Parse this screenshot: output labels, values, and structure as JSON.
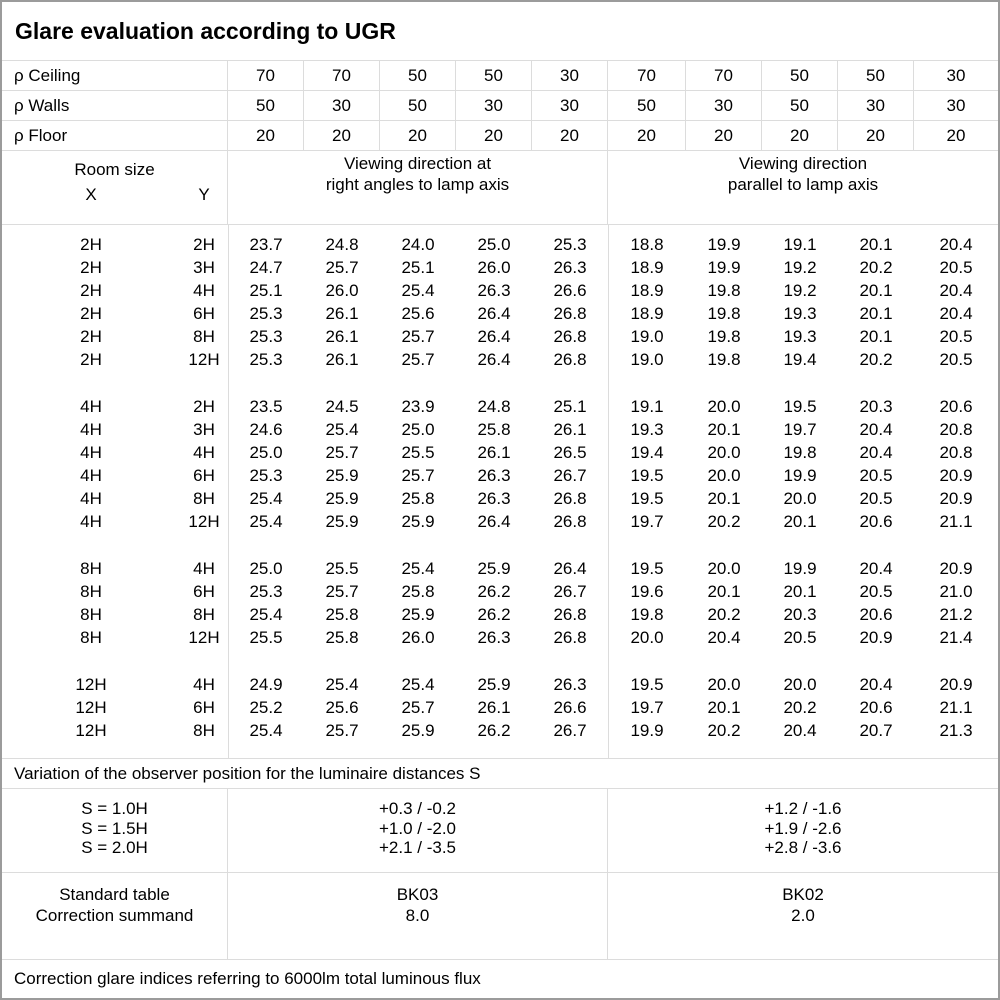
{
  "title": "Glare evaluation according to UGR",
  "reflectance": {
    "rows": [
      {
        "label": "ρ Ceiling",
        "values": [
          "70",
          "70",
          "50",
          "50",
          "30",
          "70",
          "70",
          "50",
          "50",
          "30"
        ]
      },
      {
        "label": "ρ Walls",
        "values": [
          "50",
          "30",
          "50",
          "30",
          "30",
          "50",
          "30",
          "50",
          "30",
          "30"
        ]
      },
      {
        "label": "ρ Floor",
        "values": [
          "20",
          "20",
          "20",
          "20",
          "20",
          "20",
          "20",
          "20",
          "20",
          "20"
        ]
      }
    ]
  },
  "header": {
    "room_size": "Room size",
    "x": "X",
    "y": "Y",
    "perpendicular_line1": "Viewing direction at",
    "perpendicular_line2": "right angles to lamp axis",
    "parallel_line1": "Viewing direction",
    "parallel_line2": "parallel to lamp axis"
  },
  "blocks": [
    {
      "rows": [
        {
          "x": "2H",
          "y": "2H",
          "v": [
            "23.7",
            "24.8",
            "24.0",
            "25.0",
            "25.3",
            "18.8",
            "19.9",
            "19.1",
            "20.1",
            "20.4"
          ]
        },
        {
          "x": "2H",
          "y": "3H",
          "v": [
            "24.7",
            "25.7",
            "25.1",
            "26.0",
            "26.3",
            "18.9",
            "19.9",
            "19.2",
            "20.2",
            "20.5"
          ]
        },
        {
          "x": "2H",
          "y": "4H",
          "v": [
            "25.1",
            "26.0",
            "25.4",
            "26.3",
            "26.6",
            "18.9",
            "19.8",
            "19.2",
            "20.1",
            "20.4"
          ]
        },
        {
          "x": "2H",
          "y": "6H",
          "v": [
            "25.3",
            "26.1",
            "25.6",
            "26.4",
            "26.8",
            "18.9",
            "19.8",
            "19.3",
            "20.1",
            "20.4"
          ]
        },
        {
          "x": "2H",
          "y": "8H",
          "v": [
            "25.3",
            "26.1",
            "25.7",
            "26.4",
            "26.8",
            "19.0",
            "19.8",
            "19.3",
            "20.1",
            "20.5"
          ]
        },
        {
          "x": "2H",
          "y": "12H",
          "v": [
            "25.3",
            "26.1",
            "25.7",
            "26.4",
            "26.8",
            "19.0",
            "19.8",
            "19.4",
            "20.2",
            "20.5"
          ]
        }
      ]
    },
    {
      "rows": [
        {
          "x": "4H",
          "y": "2H",
          "v": [
            "23.5",
            "24.5",
            "23.9",
            "24.8",
            "25.1",
            "19.1",
            "20.0",
            "19.5",
            "20.3",
            "20.6"
          ]
        },
        {
          "x": "4H",
          "y": "3H",
          "v": [
            "24.6",
            "25.4",
            "25.0",
            "25.8",
            "26.1",
            "19.3",
            "20.1",
            "19.7",
            "20.4",
            "20.8"
          ]
        },
        {
          "x": "4H",
          "y": "4H",
          "v": [
            "25.0",
            "25.7",
            "25.5",
            "26.1",
            "26.5",
            "19.4",
            "20.0",
            "19.8",
            "20.4",
            "20.8"
          ]
        },
        {
          "x": "4H",
          "y": "6H",
          "v": [
            "25.3",
            "25.9",
            "25.7",
            "26.3",
            "26.7",
            "19.5",
            "20.0",
            "19.9",
            "20.5",
            "20.9"
          ]
        },
        {
          "x": "4H",
          "y": "8H",
          "v": [
            "25.4",
            "25.9",
            "25.8",
            "26.3",
            "26.8",
            "19.5",
            "20.1",
            "20.0",
            "20.5",
            "20.9"
          ]
        },
        {
          "x": "4H",
          "y": "12H",
          "v": [
            "25.4",
            "25.9",
            "25.9",
            "26.4",
            "26.8",
            "19.7",
            "20.2",
            "20.1",
            "20.6",
            "21.1"
          ]
        }
      ]
    },
    {
      "rows": [
        {
          "x": "8H",
          "y": "4H",
          "v": [
            "25.0",
            "25.5",
            "25.4",
            "25.9",
            "26.4",
            "19.5",
            "20.0",
            "19.9",
            "20.4",
            "20.9"
          ]
        },
        {
          "x": "8H",
          "y": "6H",
          "v": [
            "25.3",
            "25.7",
            "25.8",
            "26.2",
            "26.7",
            "19.6",
            "20.1",
            "20.1",
            "20.5",
            "21.0"
          ]
        },
        {
          "x": "8H",
          "y": "8H",
          "v": [
            "25.4",
            "25.8",
            "25.9",
            "26.2",
            "26.8",
            "19.8",
            "20.2",
            "20.3",
            "20.6",
            "21.2"
          ]
        },
        {
          "x": "8H",
          "y": "12H",
          "v": [
            "25.5",
            "25.8",
            "26.0",
            "26.3",
            "26.8",
            "20.0",
            "20.4",
            "20.5",
            "20.9",
            "21.4"
          ]
        }
      ]
    },
    {
      "rows": [
        {
          "x": "12H",
          "y": "4H",
          "v": [
            "24.9",
            "25.4",
            "25.4",
            "25.9",
            "26.3",
            "19.5",
            "20.0",
            "20.0",
            "20.4",
            "20.9"
          ]
        },
        {
          "x": "12H",
          "y": "6H",
          "v": [
            "25.2",
            "25.6",
            "25.7",
            "26.1",
            "26.6",
            "19.7",
            "20.1",
            "20.2",
            "20.6",
            "21.1"
          ]
        },
        {
          "x": "12H",
          "y": "8H",
          "v": [
            "25.4",
            "25.7",
            "25.9",
            "26.2",
            "26.7",
            "19.9",
            "20.2",
            "20.4",
            "20.7",
            "21.3"
          ]
        }
      ]
    }
  ],
  "variation_note": "Variation of the observer position for the luminaire distances S",
  "s_table": {
    "labels": [
      "S = 1.0H",
      "S = 1.5H",
      "S = 2.0H"
    ],
    "perpendicular": [
      "+0.3 / -0.2",
      "+1.0 / -2.0",
      "+2.1 / -3.5"
    ],
    "parallel": [
      "+1.2 / -1.6",
      "+1.9 / -2.6",
      "+2.8 / -3.6"
    ]
  },
  "standard": {
    "labels": [
      "Standard table",
      "Correction summand"
    ],
    "perpendicular": [
      "BK03",
      "8.0"
    ],
    "parallel": [
      "BK02",
      "2.0"
    ]
  },
  "footer": "Correction glare indices referring to 6000lm total luminous flux",
  "colors": {
    "grid_line": "#dcdcdc",
    "outer_border": "#9b9b9b",
    "text": "#000000",
    "background": "#ffffff"
  }
}
